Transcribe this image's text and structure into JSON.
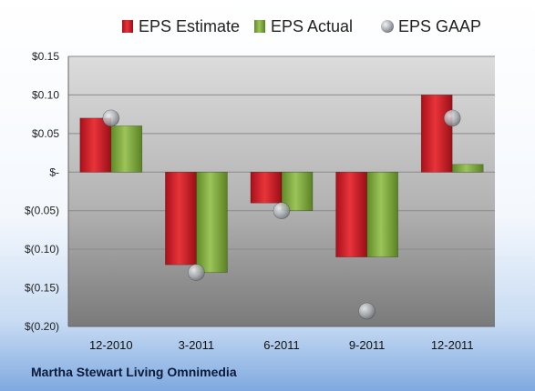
{
  "company_name": "Martha Stewart Living Omnimedia",
  "chart_data": {
    "type": "bar",
    "categories": [
      "12-2010",
      "3-2011",
      "6-2011",
      "9-2011",
      "12-2011"
    ],
    "series": [
      {
        "name": "EPS Estimate",
        "kind": "bar",
        "color": "#d42328",
        "values": [
          0.07,
          -0.12,
          -0.04,
          -0.11,
          0.1
        ]
      },
      {
        "name": "EPS Actual",
        "kind": "bar",
        "color": "#7ea83a",
        "values": [
          0.06,
          -0.13,
          -0.05,
          -0.11,
          0.01
        ]
      },
      {
        "name": "EPS GAAP",
        "kind": "scatter",
        "color": "#9aa0a8",
        "values": [
          0.07,
          -0.13,
          -0.05,
          -0.18,
          0.07
        ]
      }
    ],
    "ylim": [
      -0.2,
      0.15
    ],
    "y_ticks": [
      0.15,
      0.1,
      0.05,
      0,
      -0.05,
      -0.1,
      -0.15,
      -0.2
    ],
    "y_tick_labels": [
      "$0.15",
      "$0.10",
      "$0.05",
      "$-",
      "$(0.05)",
      "$(0.10)",
      "$(0.15)",
      "$(0.20)"
    ],
    "grid": true,
    "legend_position": "top"
  }
}
